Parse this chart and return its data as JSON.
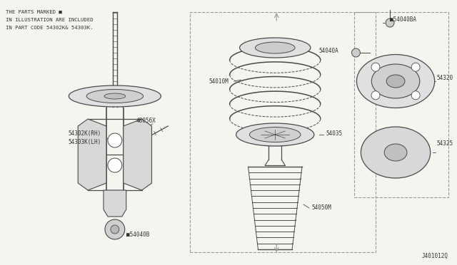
{
  "bg": "#f5f5f0",
  "lc": "#4a4a4a",
  "tc": "#333333",
  "header": [
    "THE PARTS MARKED ■",
    "IN ILLUSTRATION ARE INCLUDED",
    "IN PART CODE 54302K& 54303K."
  ],
  "footer": "J401012Q",
  "figsize": [
    6.4,
    3.72
  ],
  "dpi": 100,
  "xlim": [
    0,
    640
  ],
  "ylim": [
    0,
    372
  ]
}
